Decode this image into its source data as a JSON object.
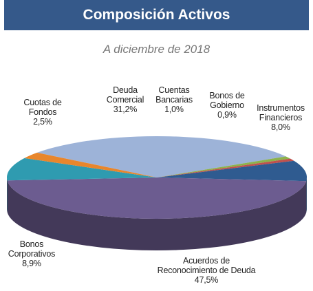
{
  "chart_data": {
    "type": "pie",
    "title": "Composición Activos",
    "subtitle": "A diciembre de 2018",
    "categories": [
      "Deuda\nComercial",
      "Cuentas\nBancarias",
      "Bonos de\nGobierno",
      "Instrumentos\nFinancieros",
      "Acuerdos de\nReconocimiento de Deuda",
      "Bonos\nCorporativos",
      "Cuotas de\nFondos"
    ],
    "values": [
      31.2,
      1.0,
      0.9,
      8.0,
      47.5,
      8.9,
      2.5
    ],
    "value_labels": [
      "31,2%",
      "1,0%",
      "0,9%",
      "8,0%",
      "47,5%",
      "8,9%",
      "2,5%"
    ],
    "colors": [
      "#9db3d8",
      "#8db24c",
      "#c0504d",
      "#2f5b90",
      "#6c5c90",
      "#2f9bb0",
      "#e8862c"
    ]
  }
}
